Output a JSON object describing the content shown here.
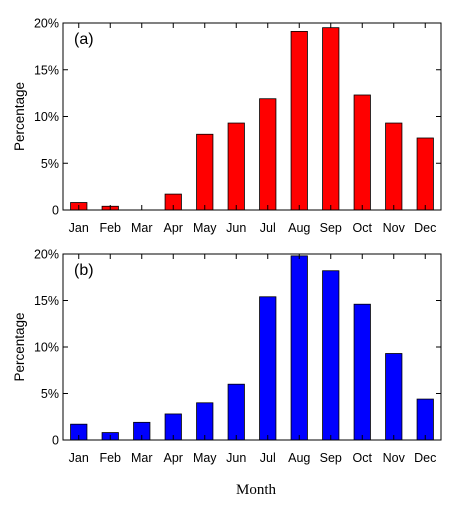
{
  "xlabel": "Month",
  "chart_data": [
    {
      "type": "bar",
      "panel_label": "(a)",
      "categories": [
        "Jan",
        "Feb",
        "Mar",
        "Apr",
        "May",
        "Jun",
        "Jul",
        "Aug",
        "Sep",
        "Oct",
        "Nov",
        "Dec"
      ],
      "values": [
        0.8,
        0.4,
        0.0,
        1.7,
        8.1,
        9.3,
        11.9,
        19.1,
        19.5,
        12.3,
        9.3,
        7.7
      ],
      "ylabel": "Percentage",
      "ylim": [
        0,
        20
      ],
      "yticks": [
        0,
        5,
        10,
        15,
        20
      ],
      "ytick_labels": [
        "0",
        "5%",
        "10%",
        "15%",
        "20%"
      ],
      "color": "#ff0000"
    },
    {
      "type": "bar",
      "panel_label": "(b)",
      "categories": [
        "Jan",
        "Feb",
        "Mar",
        "Apr",
        "May",
        "Jun",
        "Jul",
        "Aug",
        "Sep",
        "Oct",
        "Nov",
        "Dec"
      ],
      "values": [
        1.7,
        0.8,
        1.9,
        2.8,
        4.0,
        6.0,
        15.4,
        19.8,
        18.2,
        14.6,
        9.3,
        4.4
      ],
      "ylabel": "Percentage",
      "ylim": [
        0,
        20
      ],
      "yticks": [
        0,
        5,
        10,
        15,
        20
      ],
      "ytick_labels": [
        "0",
        "5%",
        "10%",
        "15%",
        "20%"
      ],
      "color": "#0000ff"
    }
  ]
}
